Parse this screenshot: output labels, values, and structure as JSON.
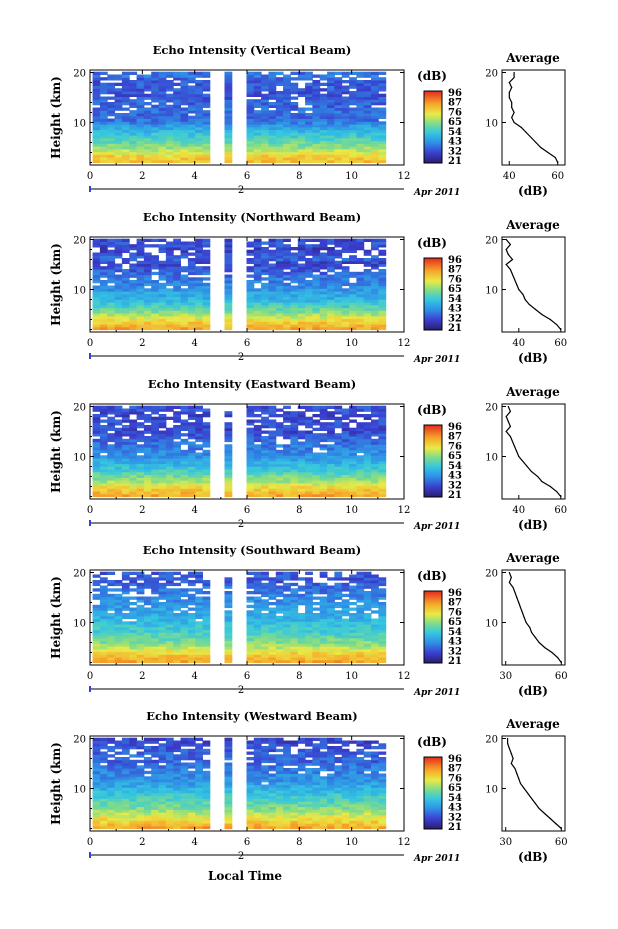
{
  "figure": {
    "xlabel": "Local Time",
    "date_label": "Apr 2011",
    "date_marker": "2",
    "colorbar_unit": "(dB)",
    "colorbar_ticks": [
      "96",
      "87",
      "76",
      "65",
      "54",
      "43",
      "32",
      "21"
    ]
  },
  "chart_data": [
    {
      "type": "heatmap",
      "panel": "vertical",
      "title": "Echo Intensity (Vertical Beam)",
      "xlabel": "",
      "ylabel": "Height (km)",
      "xlim": [
        0,
        12
      ],
      "ylim": [
        1.5,
        20.5
      ],
      "xticks": [
        "0",
        "2",
        "4",
        "6",
        "8",
        "10",
        "12"
      ],
      "yticks": [
        "10",
        "20"
      ],
      "data_time_range": [
        0.1,
        11.2
      ],
      "data_gaps": [
        [
          4.85,
          5.05
        ],
        [
          5.5,
          5.75
        ]
      ],
      "color_scale": {
        "min": 21,
        "max": 96,
        "unit": "dB"
      },
      "profile": {
        "title": "Average",
        "xlabel": "(dB)",
        "xlim": [
          37,
          63
        ],
        "xticks": [
          "40",
          "60"
        ],
        "yticks": [
          "10",
          "20"
        ],
        "points": [
          [
            60,
            2
          ],
          [
            59,
            3
          ],
          [
            56,
            4
          ],
          [
            53,
            5
          ],
          [
            51,
            6
          ],
          [
            49,
            7
          ],
          [
            47,
            8
          ],
          [
            45,
            9
          ],
          [
            42,
            10
          ],
          [
            41,
            11
          ],
          [
            42,
            12
          ],
          [
            41,
            13
          ],
          [
            41,
            14
          ],
          [
            40,
            15
          ],
          [
            40,
            16
          ],
          [
            41,
            17
          ],
          [
            40,
            18
          ],
          [
            42,
            19
          ],
          [
            42,
            20
          ]
        ]
      }
    },
    {
      "type": "heatmap",
      "panel": "northward",
      "title": "Echo Intensity (Northward Beam)",
      "xlabel": "",
      "ylabel": "Height (km)",
      "xlim": [
        0,
        12
      ],
      "ylim": [
        1.5,
        20.5
      ],
      "xticks": [
        "0",
        "2",
        "4",
        "6",
        "8",
        "10",
        "12"
      ],
      "yticks": [
        "10",
        "20"
      ],
      "data_time_range": [
        0.1,
        11.2
      ],
      "data_gaps": [
        [
          4.85,
          5.05
        ],
        [
          5.5,
          5.75
        ]
      ],
      "color_scale": {
        "min": 21,
        "max": 96,
        "unit": "dB"
      },
      "profile": {
        "title": "Average",
        "xlabel": "(dB)",
        "xlim": [
          32,
          62
        ],
        "xticks": [
          "40",
          "60"
        ],
        "yticks": [
          "10",
          "20"
        ],
        "points": [
          [
            60,
            2
          ],
          [
            58,
            3
          ],
          [
            55,
            4
          ],
          [
            51,
            5
          ],
          [
            48,
            6
          ],
          [
            45,
            7
          ],
          [
            43,
            8
          ],
          [
            42,
            9
          ],
          [
            40,
            10
          ],
          [
            39,
            11
          ],
          [
            38,
            12
          ],
          [
            37,
            13
          ],
          [
            36,
            14
          ],
          [
            34,
            15
          ],
          [
            37,
            16
          ],
          [
            35,
            17
          ],
          [
            34,
            18
          ],
          [
            36,
            19
          ],
          [
            34,
            20
          ]
        ]
      }
    },
    {
      "type": "heatmap",
      "panel": "eastward",
      "title": "Echo Intensity (Eastward Beam)",
      "xlabel": "",
      "ylabel": "Height (km)",
      "xlim": [
        0,
        12
      ],
      "ylim": [
        1.5,
        20.5
      ],
      "xticks": [
        "0",
        "2",
        "4",
        "6",
        "8",
        "10",
        "12"
      ],
      "yticks": [
        "10",
        "20"
      ],
      "data_time_range": [
        0.1,
        11.2
      ],
      "data_gaps": [
        [
          4.85,
          5.05
        ],
        [
          5.5,
          5.75
        ]
      ],
      "color_scale": {
        "min": 21,
        "max": 96,
        "unit": "dB"
      },
      "profile": {
        "title": "Average",
        "xlabel": "(dB)",
        "xlim": [
          32,
          62
        ],
        "xticks": [
          "40",
          "60"
        ],
        "yticks": [
          "10",
          "20"
        ],
        "points": [
          [
            60,
            2
          ],
          [
            58,
            3
          ],
          [
            55,
            4
          ],
          [
            51,
            5
          ],
          [
            49,
            6
          ],
          [
            46,
            7
          ],
          [
            44,
            8
          ],
          [
            42,
            9
          ],
          [
            40,
            10
          ],
          [
            39,
            11
          ],
          [
            38,
            12
          ],
          [
            37,
            13
          ],
          [
            36,
            14
          ],
          [
            34,
            15
          ],
          [
            36,
            16
          ],
          [
            35,
            17
          ],
          [
            34,
            18
          ],
          [
            36,
            19
          ],
          [
            35,
            20
          ]
        ]
      }
    },
    {
      "type": "heatmap",
      "panel": "southward",
      "title": "Echo Intensity (Southward Beam)",
      "xlabel": "",
      "ylabel": "Height (km)",
      "xlim": [
        0,
        12
      ],
      "ylim": [
        1.5,
        20.5
      ],
      "xticks": [
        "0",
        "2",
        "4",
        "6",
        "8",
        "10",
        "12"
      ],
      "yticks": [
        "10",
        "20"
      ],
      "data_time_range": [
        0.1,
        11.2
      ],
      "data_gaps": [
        [
          4.85,
          5.05
        ],
        [
          5.5,
          5.75
        ]
      ],
      "color_scale": {
        "min": 21,
        "max": 96,
        "unit": "dB"
      },
      "profile": {
        "title": "Average",
        "xlabel": "(dB)",
        "xlim": [
          28,
          62
        ],
        "xticks": [
          "30",
          "60"
        ],
        "yticks": [
          "10",
          "20"
        ],
        "points": [
          [
            60,
            2
          ],
          [
            58,
            3
          ],
          [
            55,
            4
          ],
          [
            51,
            5
          ],
          [
            48,
            6
          ],
          [
            46,
            7
          ],
          [
            44,
            8
          ],
          [
            43,
            9
          ],
          [
            41,
            10
          ],
          [
            40,
            11
          ],
          [
            39,
            12
          ],
          [
            38,
            13
          ],
          [
            37,
            14
          ],
          [
            36,
            15
          ],
          [
            35,
            16
          ],
          [
            34,
            17
          ],
          [
            32,
            18
          ],
          [
            33,
            19
          ],
          [
            32,
            20
          ]
        ]
      }
    },
    {
      "type": "heatmap",
      "panel": "westward",
      "title": "Echo Intensity (Westward Beam)",
      "xlabel": "",
      "ylabel": "Height (km)",
      "xlim": [
        0,
        12
      ],
      "ylim": [
        1.5,
        20.5
      ],
      "xticks": [
        "0",
        "2",
        "4",
        "6",
        "8",
        "10",
        "12"
      ],
      "yticks": [
        "10",
        "20"
      ],
      "data_time_range": [
        0.1,
        11.2
      ],
      "data_gaps": [
        [
          4.85,
          5.05
        ],
        [
          5.5,
          5.75
        ]
      ],
      "color_scale": {
        "min": 21,
        "max": 96,
        "unit": "dB"
      },
      "profile": {
        "title": "Average",
        "xlabel": "(dB)",
        "xlim": [
          28,
          62
        ],
        "xticks": [
          "30",
          "60"
        ],
        "yticks": [
          "10",
          "20"
        ],
        "points": [
          [
            60,
            2
          ],
          [
            57,
            3
          ],
          [
            54,
            4
          ],
          [
            51,
            5
          ],
          [
            48,
            6
          ],
          [
            46,
            7
          ],
          [
            44,
            8
          ],
          [
            42,
            9
          ],
          [
            40,
            10
          ],
          [
            38,
            11
          ],
          [
            37,
            12
          ],
          [
            36,
            13
          ],
          [
            35,
            14
          ],
          [
            33,
            15
          ],
          [
            34,
            16
          ],
          [
            33,
            17
          ],
          [
            32,
            18
          ],
          [
            31,
            19
          ],
          [
            31,
            20
          ]
        ]
      }
    }
  ]
}
